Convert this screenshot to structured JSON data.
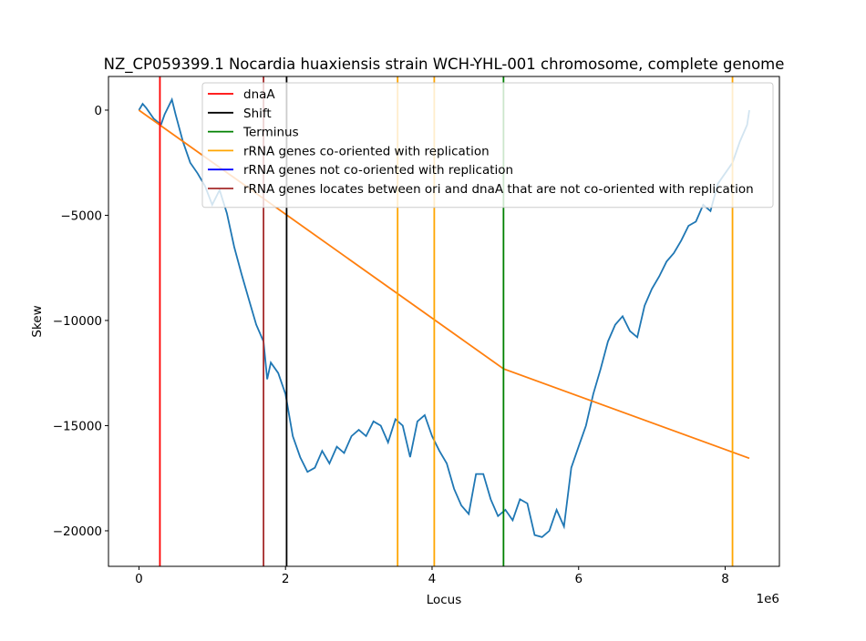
{
  "chart_data": {
    "type": "line",
    "title": "NZ_CP059399.1 Nocardia huaxiensis strain WCH-YHL-001 chromosome, complete genome",
    "x_label": "Locus",
    "y_label": "Skew",
    "x_offset_label": "1e6",
    "xlim": [
      -416000,
      8740000
    ],
    "ylim": [
      -21690,
      1600
    ],
    "xticks": [
      {
        "value": 0,
        "label": "0"
      },
      {
        "value": 2000000,
        "label": "2"
      },
      {
        "value": 4000000,
        "label": "4"
      },
      {
        "value": 6000000,
        "label": "6"
      },
      {
        "value": 8000000,
        "label": "8"
      }
    ],
    "yticks": [
      0,
      {
        "value": -5000,
        "label": "−5000"
      },
      {
        "value": -10000,
        "label": "−10000"
      },
      {
        "value": -15000,
        "label": "−15000"
      },
      {
        "value": -20000,
        "label": "−20000"
      }
    ],
    "legend_loc": "upper right",
    "series": [
      {
        "color": "#1f77b4",
        "x": [
          0,
          50000,
          100000,
          200000,
          300000,
          350000,
          450000,
          500000,
          600000,
          700000,
          800000,
          900000,
          1000000,
          1100000,
          1200000,
          1300000,
          1400000,
          1500000,
          1600000,
          1700000,
          1750000,
          1800000,
          1900000,
          2000000,
          2100000,
          2200000,
          2300000,
          2400000,
          2500000,
          2600000,
          2700000,
          2800000,
          2900000,
          3000000,
          3100000,
          3200000,
          3300000,
          3400000,
          3500000,
          3600000,
          3700000,
          3800000,
          3900000,
          4000000,
          4100000,
          4200000,
          4300000,
          4400000,
          4500000,
          4600000,
          4700000,
          4800000,
          4900000,
          5000000,
          5100000,
          5200000,
          5300000,
          5400000,
          5500000,
          5600000,
          5700000,
          5800000,
          5900000,
          6000000,
          6100000,
          6200000,
          6300000,
          6400000,
          6500000,
          6600000,
          6700000,
          6800000,
          6900000,
          7000000,
          7100000,
          7200000,
          7300000,
          7400000,
          7500000,
          7600000,
          7700000,
          7800000,
          7900000,
          8000000,
          8100000,
          8200000,
          8300000,
          8330000
        ],
        "values": [
          0,
          300,
          100,
          -400,
          -700,
          -200,
          500,
          -200,
          -1500,
          -2500,
          -3000,
          -3600,
          -4500,
          -3800,
          -4900,
          -6500,
          -7800,
          -9000,
          -10200,
          -11000,
          -12800,
          -12000,
          -12500,
          -13500,
          -15500,
          -16500,
          -17200,
          -17000,
          -16200,
          -16800,
          -16000,
          -16300,
          -15500,
          -15200,
          -15500,
          -14800,
          -15000,
          -15800,
          -14700,
          -15000,
          -16500,
          -14800,
          -14500,
          -15500,
          -16200,
          -16800,
          -18000,
          -18800,
          -19200,
          -17300,
          -17300,
          -18500,
          -19300,
          -19000,
          -19500,
          -18500,
          -18700,
          -20200,
          -20300,
          -20000,
          -19000,
          -19800,
          -17000,
          -16000,
          -15000,
          -13500,
          -12300,
          -11000,
          -10200,
          -9800,
          -10500,
          -10800,
          -9300,
          -8500,
          -7900,
          -7200,
          -6800,
          -6200,
          -5500,
          -5300,
          -4500,
          -4800,
          -3500,
          -3000,
          -2500,
          -1500,
          -700,
          0
        ]
      },
      {
        "color": "#ff7f0e",
        "x": [
          0,
          4975000,
          8330000
        ],
        "values": [
          0,
          -12300,
          -16550
        ]
      }
    ],
    "vlines": [
      {
        "name": "dnaA",
        "color": "#ff0000",
        "x": [
          286000
        ]
      },
      {
        "name": "Shift",
        "color": "#000000",
        "x": [
          2015000
        ]
      },
      {
        "name": "Terminus",
        "color": "#008000",
        "x": [
          4975000
        ]
      },
      {
        "name": "rRNA genes co-oriented with replication",
        "color": "#ffa500",
        "x": [
          3530000,
          4030000,
          8100000
        ]
      },
      {
        "name": "rRNA genes not co-oriented with replication",
        "color": "#0000ff",
        "x": []
      },
      {
        "name": "rRNA genes locates between ori and dnaA that are not co-oriented with replication",
        "color": "#a52a2a",
        "x": [
          1700000
        ]
      }
    ]
  }
}
